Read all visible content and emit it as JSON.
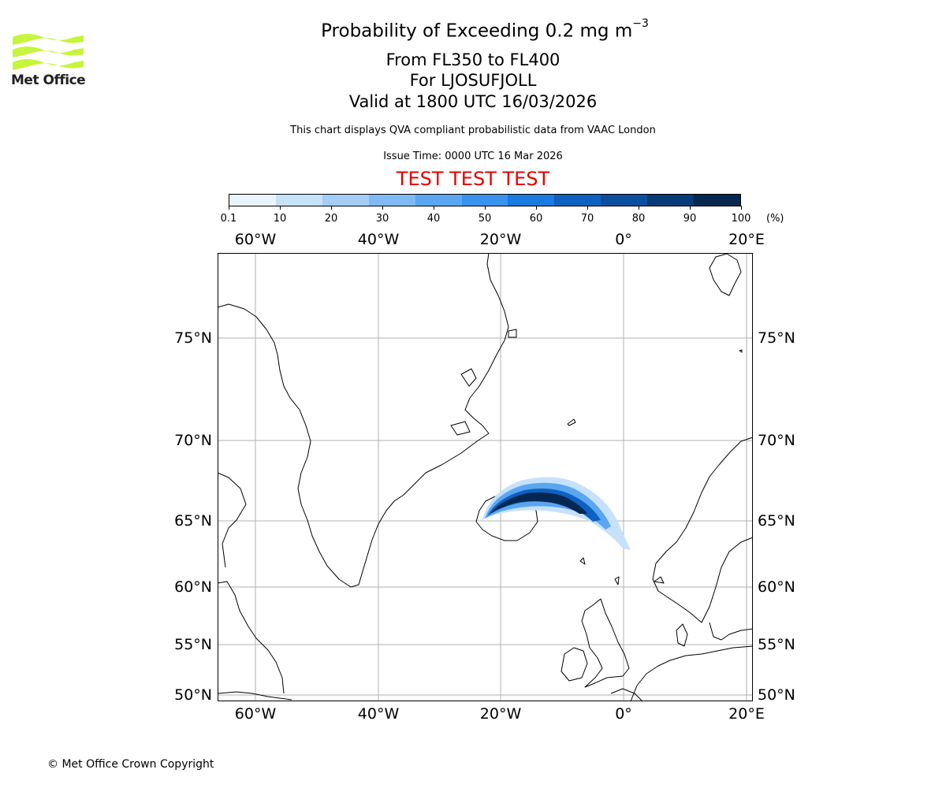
{
  "logo": {
    "text": "Met Office",
    "icon": "met-office-wave-logo-icon",
    "color": "#c6f53b"
  },
  "title": {
    "main": "Probability of Exceeding 0.2 mg m",
    "main_superscript": "−3",
    "level": "From FL350 to FL400",
    "location": "For LJOSUFJOLL",
    "valid": "Valid at 1800 UTC 16/03/2026"
  },
  "subtitle": "This chart displays QVA compliant probabilistic data from VAAC London",
  "issue_time": "Issue Time: 0000 UTC 16 Mar 2026",
  "test_banner": "TEST TEST TEST",
  "test_banner_color": "#e60000",
  "colorbar": {
    "ticks": [
      "0.1",
      "10",
      "20",
      "30",
      "40",
      "50",
      "60",
      "70",
      "80",
      "90",
      "100"
    ],
    "unit": "(%)",
    "colors": [
      "#eaf4fd",
      "#c6e1fa",
      "#a3cdf7",
      "#7fbaf4",
      "#5ba6f1",
      "#3892ee",
      "#1a7ae0",
      "#0d62c1",
      "#0a4f9e",
      "#083b79",
      "#052852"
    ]
  },
  "map": {
    "lon_labels": [
      "60°W",
      "40°W",
      "20°W",
      "0°",
      "20°E"
    ],
    "lat_labels": [
      "75°N",
      "70°N",
      "65°N",
      "60°N",
      "55°N",
      "50°N"
    ],
    "plume_description_hidden": false
  },
  "copyright": "© Met Office Crown Copyright"
}
